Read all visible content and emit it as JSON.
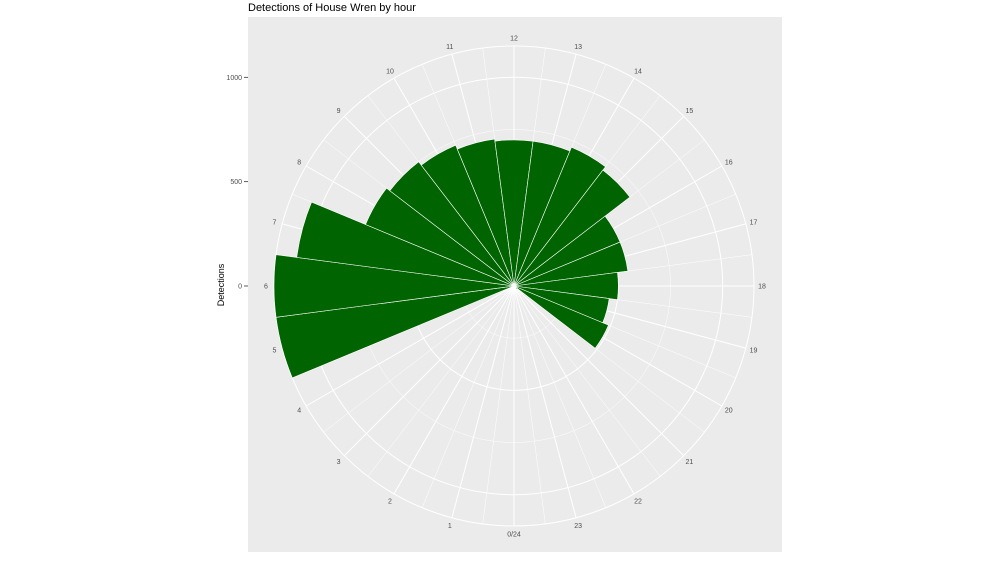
{
  "chart_data": {
    "type": "bar",
    "coord": "polar",
    "title": "Detections of House Wren by hour",
    "ylabel": "Detections",
    "xlabel": "",
    "categories": [
      "0/24",
      "1",
      "2",
      "3",
      "4",
      "5",
      "6",
      "7",
      "8",
      "9",
      "10",
      "11",
      "12",
      "13",
      "14",
      "15",
      "16",
      "17",
      "18",
      "19",
      "20",
      "21",
      "22",
      "23"
    ],
    "values": [
      0,
      0,
      0,
      0,
      0,
      1150,
      1150,
      1050,
      770,
      750,
      730,
      710,
      700,
      700,
      720,
      700,
      550,
      550,
      500,
      460,
      490,
      20,
      0,
      0
    ],
    "y_ticks": [
      0,
      500,
      1000
    ],
    "y_tick_labels": [
      "0",
      "500",
      "1000"
    ],
    "ylim": [
      0,
      1150
    ],
    "bar_color": "#006400",
    "panel_color": "#ebebeb",
    "grid_color": "#ffffff",
    "grid": true,
    "legend": "none"
  }
}
